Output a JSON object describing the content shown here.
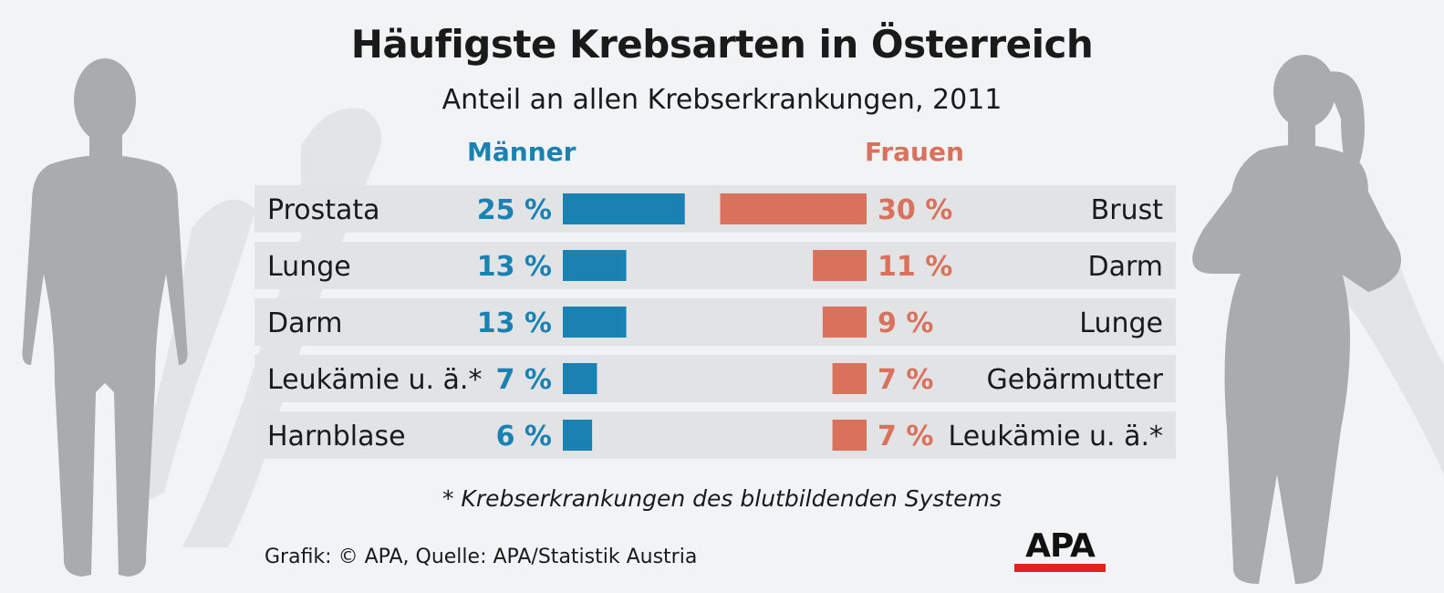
{
  "chart_data": {
    "type": "bar",
    "title": "Häufigste Krebsarten in Österreich",
    "subtitle": "Anteil an allen Krebserkrankungen, 2011",
    "unit": "%",
    "series": [
      {
        "name": "Männer",
        "color": "#1a82b3",
        "categories": [
          "Prostata",
          "Lunge",
          "Darm",
          "Leukämie u. ä.*",
          "Harnblase"
        ],
        "values": [
          25,
          13,
          13,
          7,
          6
        ],
        "labels": [
          "25 %",
          "13 %",
          "13 %",
          "7 %",
          "6 %"
        ]
      },
      {
        "name": "Frauen",
        "color": "#d9715c",
        "categories": [
          "Brust",
          "Darm",
          "Lunge",
          "Gebärmutter",
          "Leukämie u. ä.*"
        ],
        "values": [
          30,
          11,
          9,
          7,
          7
        ],
        "labels": [
          "30 %",
          "11 %",
          "9 %",
          "7 %",
          "7 %"
        ]
      }
    ],
    "footnote": "* Krebserkrankungen des blutbildenden Systems"
  },
  "source": "Grafik: © APA, Quelle: APA/Statistik Austria",
  "logo": "APA"
}
